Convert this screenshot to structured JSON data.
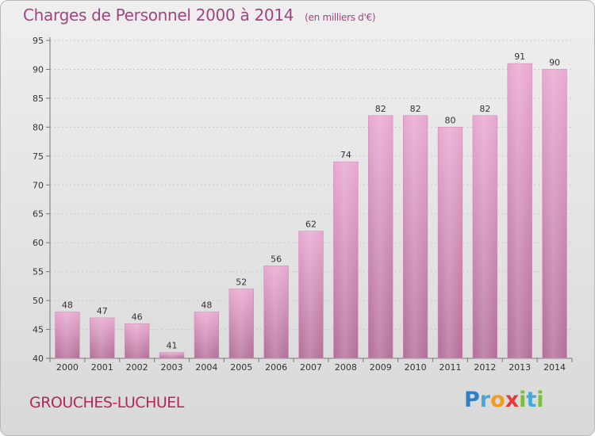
{
  "header": {
    "title": "Charges de Personnel 2000 à 2014",
    "subtitle": "(en milliers d'€)"
  },
  "footer": {
    "commune": "GROUCHES-LUCHUEL",
    "logo_text": "Proxiti",
    "logo_letters": [
      {
        "ch": "P",
        "color": "#2f7fc6"
      },
      {
        "ch": "r",
        "color": "#45a8d8"
      },
      {
        "ch": "o",
        "color": "#f29b1f"
      },
      {
        "ch": "x",
        "color": "#e23b3b"
      },
      {
        "ch": "i",
        "color": "#7bbf3a"
      },
      {
        "ch": "t",
        "color": "#45a8d8"
      },
      {
        "ch": "i",
        "color": "#7bbf3a"
      }
    ]
  },
  "colors": {
    "bar_top": "#e9a8d0",
    "bar_bottom": "#b26f97",
    "text_accent": "#a0467e"
  },
  "chart_data": {
    "type": "bar",
    "title": "Charges de Personnel 2000 à 2014",
    "subtitle": "(en milliers d'€)",
    "categories": [
      "2000",
      "2001",
      "2002",
      "2003",
      "2004",
      "2005",
      "2006",
      "2007",
      "2008",
      "2009",
      "2010",
      "2011",
      "2012",
      "2013",
      "2014"
    ],
    "values": [
      48,
      47,
      46,
      41,
      48,
      52,
      56,
      62,
      74,
      82,
      82,
      80,
      82,
      91,
      90
    ],
    "ylim": [
      40,
      95
    ],
    "yticks": [
      40,
      45,
      50,
      55,
      60,
      65,
      70,
      75,
      80,
      85,
      90,
      95
    ],
    "grid": true,
    "xlabel": "",
    "ylabel": ""
  }
}
